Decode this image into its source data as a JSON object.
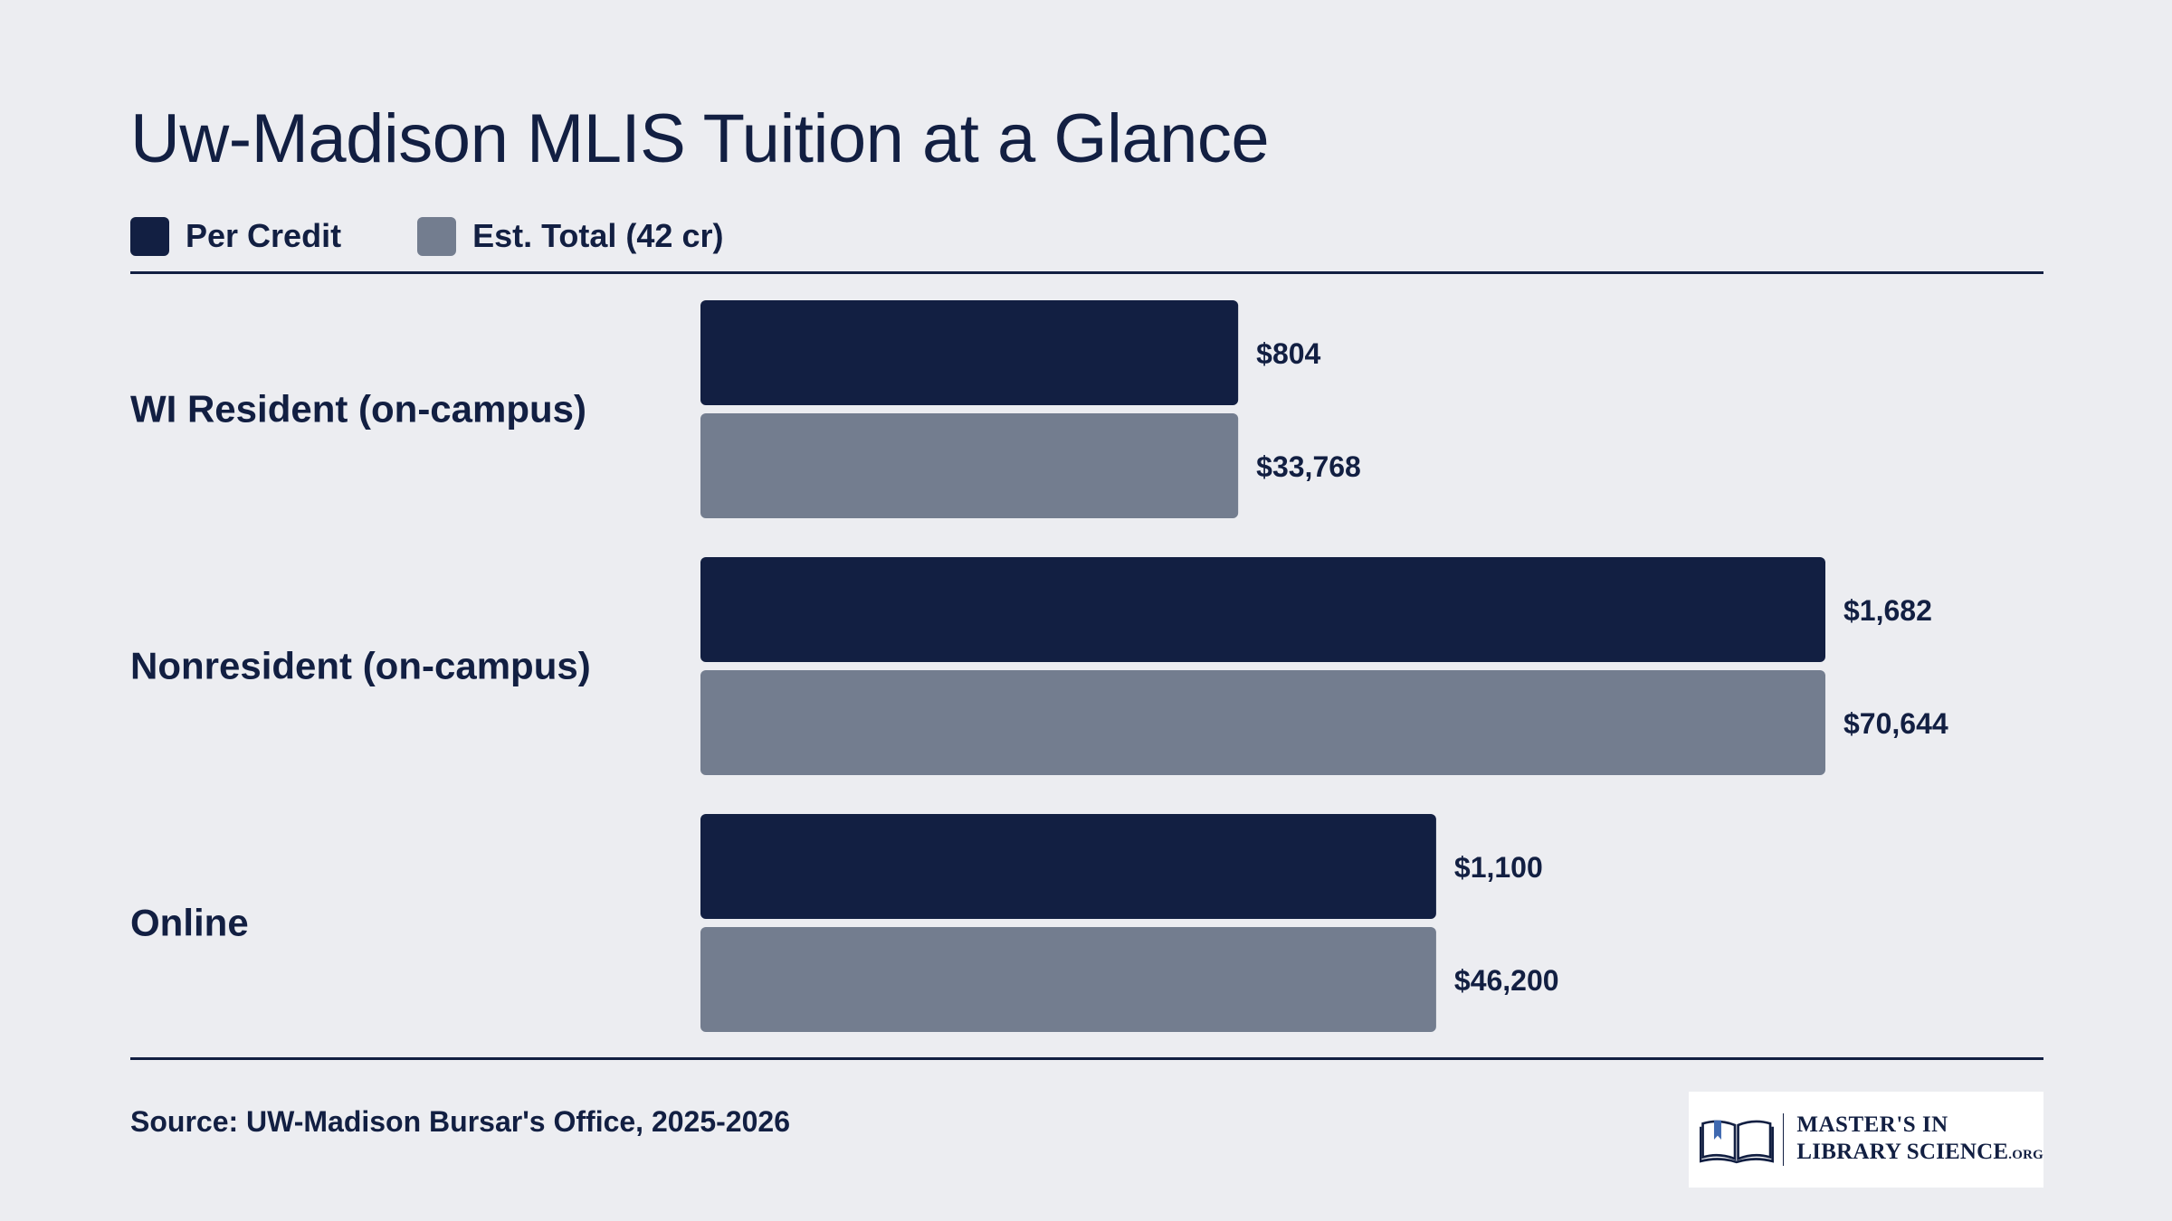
{
  "title": "Uw-Madison MLIS Tuition at a Glance",
  "legend": [
    {
      "label": "Per Credit",
      "color": "#121F42"
    },
    {
      "label": "Est. Total (42 cr)",
      "color": "#737D8F"
    }
  ],
  "source": "Source: UW-Madison Bursar's Office, 2025-2026",
  "logo": {
    "line1": "MASTER'S IN",
    "line2": "LIBRARY SCIENCE",
    "suffix": ".ORG",
    "icon": "open-book-icon"
  },
  "colors": {
    "background": "#ECEDF1",
    "per_credit": "#121F42",
    "est_total": "#737D8F",
    "text": "#121F42"
  },
  "chart_data": {
    "type": "bar",
    "orientation": "horizontal",
    "title": "Uw-Madison MLIS Tuition at a Glance",
    "categories": [
      "WI Resident (on-campus)",
      "Nonresident (on-campus)",
      "Online"
    ],
    "series": [
      {
        "name": "Per Credit",
        "values": [
          804,
          1682,
          1100
        ],
        "labels": [
          "$804",
          "$1,682",
          "$1,100"
        ]
      },
      {
        "name": "Est. Total (42 cr)",
        "values": [
          33768,
          70644,
          46200
        ],
        "labels": [
          "$33,768",
          "$70,644",
          "$46,200"
        ]
      }
    ],
    "xlabel": "",
    "ylabel": "",
    "grid": false,
    "legend_position": "top-left"
  }
}
